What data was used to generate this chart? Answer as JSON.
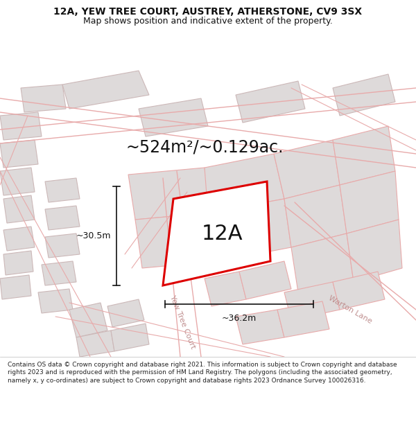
{
  "title_line1": "12A, YEW TREE COURT, AUSTREY, ATHERSTONE, CV9 3SX",
  "title_line2": "Map shows position and indicative extent of the property.",
  "area_text": "~524m²/~0.129ac.",
  "label_12A": "12A",
  "dim_height": "~30.5m",
  "dim_width": "~36.2m",
  "street_label1": "Yew Tree Court",
  "street_label2": "Warton Lane",
  "footer_text": "Contains OS data © Crown copyright and database right 2021. This information is subject to Crown copyright and database rights 2023 and is reproduced with the permission of HM Land Registry. The polygons (including the associated geometry, namely x, y co-ordinates) are subject to Crown copyright and database rights 2023 Ordnance Survey 100026316.",
  "map_bg": "#f7f3f3",
  "plot_fill": "#ffffff",
  "plot_edge": "#dd0000",
  "building_fill": "#dedada",
  "building_edge": "#ccb8b8",
  "road_color": "#e8aaaa",
  "parcel_edge": "#e8aaaa",
  "dim_color": "#111111",
  "text_color": "#111111",
  "street_text_color": "#c09090",
  "title_fontsize": 10,
  "subtitle_fontsize": 9,
  "area_fontsize": 17,
  "label_fontsize": 22,
  "dim_fontsize": 9,
  "street_fontsize": 8
}
